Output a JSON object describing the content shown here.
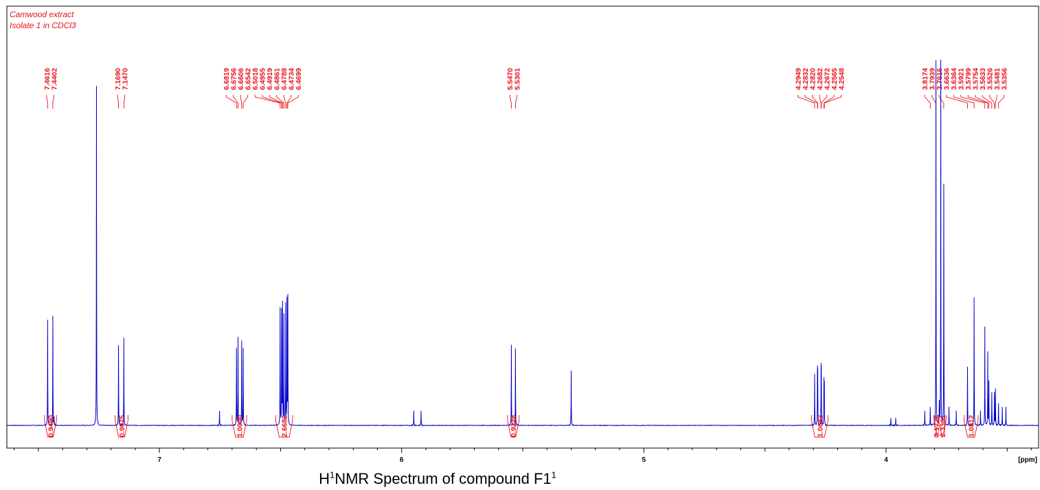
{
  "header": {
    "line1": "Camwood extract",
    "line2": "Isolate 1 in CDCl3"
  },
  "caption": {
    "pre": "H",
    "sup1": "1",
    "mid": "NMR Spectrum of compound F1",
    "sup2": "1"
  },
  "colors": {
    "spectrum": "#0000cc",
    "annotation": "#e8101a",
    "axis": "#000000"
  },
  "chart_data": {
    "type": "line",
    "title": "",
    "xlabel": "[ppm]",
    "ylabel": "",
    "xlim": [
      7.63,
      3.37
    ],
    "x_reversed": true,
    "x_ticks": [
      "7",
      "6",
      "5",
      "4"
    ],
    "x_tick_values": [
      7,
      6,
      5,
      4
    ],
    "grid": false,
    "series": [
      {
        "peaks": [
          {
            "ppm": 7.4616,
            "intensity": 0.29
          },
          {
            "ppm": 7.4402,
            "intensity": 0.3
          },
          {
            "ppm": 7.435,
            "intensity": 0.02
          },
          {
            "ppm": 7.26,
            "intensity": 0.93
          },
          {
            "ppm": 7.169,
            "intensity": 0.22
          },
          {
            "ppm": 7.147,
            "intensity": 0.24
          },
          {
            "ppm": 6.752,
            "intensity": 0.04
          },
          {
            "ppm": 6.6819,
            "intensity": 0.21
          },
          {
            "ppm": 6.6756,
            "intensity": 0.24
          },
          {
            "ppm": 6.6606,
            "intensity": 0.23
          },
          {
            "ppm": 6.6542,
            "intensity": 0.21
          },
          {
            "ppm": 6.5018,
            "intensity": 0.32
          },
          {
            "ppm": 6.4955,
            "intensity": 0.31
          },
          {
            "ppm": 6.4919,
            "intensity": 0.33
          },
          {
            "ppm": 6.4861,
            "intensity": 0.3
          },
          {
            "ppm": 6.4788,
            "intensity": 0.33
          },
          {
            "ppm": 6.4734,
            "intensity": 0.34
          },
          {
            "ppm": 6.4699,
            "intensity": 0.35
          },
          {
            "ppm": 5.95,
            "intensity": 0.04
          },
          {
            "ppm": 5.92,
            "intensity": 0.04
          },
          {
            "ppm": 5.547,
            "intensity": 0.22
          },
          {
            "ppm": 5.5301,
            "intensity": 0.21
          },
          {
            "ppm": 5.3,
            "intensity": 0.15
          },
          {
            "ppm": 4.2949,
            "intensity": 0.14
          },
          {
            "ppm": 4.2832,
            "intensity": 0.14
          },
          {
            "ppm": 4.282,
            "intensity": 0.13
          },
          {
            "ppm": 4.2682,
            "intensity": 0.14
          },
          {
            "ppm": 4.2672,
            "intensity": 0.13
          },
          {
            "ppm": 4.2565,
            "intensity": 0.12
          },
          {
            "ppm": 4.2548,
            "intensity": 0.11
          },
          {
            "ppm": 3.98,
            "intensity": 0.02
          },
          {
            "ppm": 3.96,
            "intensity": 0.02
          },
          {
            "ppm": 3.84,
            "intensity": 0.04
          },
          {
            "ppm": 3.8174,
            "intensity": 0.05
          },
          {
            "ppm": 3.7939,
            "intensity": 1.0
          },
          {
            "ppm": 3.78,
            "intensity": 0.06
          },
          {
            "ppm": 3.774,
            "intensity": 1.0
          },
          {
            "ppm": 3.7616,
            "intensity": 0.66
          },
          {
            "ppm": 3.74,
            "intensity": 0.05
          },
          {
            "ppm": 3.71,
            "intensity": 0.04
          },
          {
            "ppm": 3.6636,
            "intensity": 0.16
          },
          {
            "ppm": 3.6364,
            "intensity": 0.35
          },
          {
            "ppm": 3.61,
            "intensity": 0.04
          },
          {
            "ppm": 3.5921,
            "intensity": 0.27
          },
          {
            "ppm": 3.5799,
            "intensity": 0.2
          },
          {
            "ppm": 3.5754,
            "intensity": 0.12
          },
          {
            "ppm": 3.5633,
            "intensity": 0.09
          },
          {
            "ppm": 3.5526,
            "intensity": 0.09
          },
          {
            "ppm": 3.5481,
            "intensity": 0.1
          },
          {
            "ppm": 3.5356,
            "intensity": 0.06
          },
          {
            "ppm": 3.52,
            "intensity": 0.05
          },
          {
            "ppm": 3.505,
            "intensity": 0.05
          }
        ]
      }
    ],
    "peak_labels": [
      {
        "group": [
          "7.4616",
          "7.4402"
        ]
      },
      {
        "group": [
          "7.1690",
          "7.1470"
        ]
      },
      {
        "group": [
          "6.6819",
          "6.6756",
          "6.6606",
          "6.6542",
          "6.5018",
          "6.4955",
          "6.4919",
          "6.4861",
          "6.4788",
          "6.4734",
          "6.4699"
        ]
      },
      {
        "group": [
          "5.5470",
          "5.5301"
        ]
      },
      {
        "group": [
          "4.2949",
          "4.2832",
          "4.2820",
          "4.2682",
          "4.2672",
          "4.2565",
          "4.2548"
        ]
      },
      {
        "group": [
          "3.8174",
          "3.7939",
          "3.7616",
          "3.6636",
          "3.6364",
          "3.5921",
          "3.5799",
          "3.5754",
          "3.5633",
          "3.5526",
          "3.5481",
          "3.5356"
        ]
      }
    ],
    "integrals": [
      {
        "from": 7.475,
        "to": 7.425,
        "value": "0.9490"
      },
      {
        "from": 7.183,
        "to": 7.13,
        "value": "0.9075"
      },
      {
        "from": 6.7,
        "to": 6.64,
        "value": "1.0000"
      },
      {
        "from": 6.52,
        "to": 6.45,
        "value": "2.6682"
      },
      {
        "from": 5.563,
        "to": 5.515,
        "value": "0.9228"
      },
      {
        "from": 4.308,
        "to": 4.24,
        "value": "1.0642"
      },
      {
        "from": 3.802,
        "to": 3.784,
        "value": "3.1725"
      },
      {
        "from": 3.783,
        "to": 3.752,
        "value": "2.3361"
      },
      {
        "from": 3.678,
        "to": 3.62,
        "value": "1.0812"
      }
    ]
  }
}
